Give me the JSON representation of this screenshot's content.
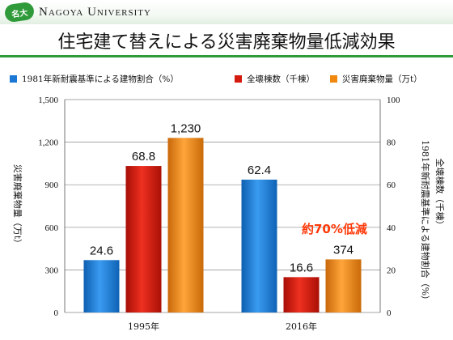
{
  "header": {
    "logo_text": "Nagoya University",
    "badge_text": "名大"
  },
  "slide": {
    "title": "住宅建て替えによる災害廃棄物量低減効果"
  },
  "chart_data": {
    "type": "bar",
    "categories": [
      "1995年",
      "2016年"
    ],
    "series": [
      {
        "name": "1981年新耐震基準による建物割合（%）",
        "axis": "right",
        "values": [
          24.6,
          62.4
        ],
        "labels": [
          "24.6",
          "62.4"
        ],
        "color": "#1a78d4"
      },
      {
        "name": "全壊棟数（千棟）",
        "axis": "right",
        "values": [
          68.8,
          16.6
        ],
        "labels": [
          "68.8",
          "16.6"
        ],
        "color": "#d41a0e"
      },
      {
        "name": "災害廃棄物量（万t）",
        "axis": "left",
        "values": [
          1230,
          374
        ],
        "labels": [
          "1,230",
          "374"
        ],
        "color": "#f08810"
      }
    ],
    "y_left": {
      "label": "災害廃棄物量（万t）",
      "range": [
        0,
        1500
      ],
      "ticks": [
        "0",
        "300",
        "600",
        "900",
        "1,200",
        "1,500"
      ]
    },
    "y_right": {
      "label_line1": "1981年新耐震基準による建物割合（%）",
      "label_line2": "全壊棟数（千棟）",
      "range": [
        0,
        100
      ],
      "ticks": [
        "0",
        "20",
        "40",
        "60",
        "80",
        "100"
      ]
    },
    "annotation": "約70%低減",
    "grid": true,
    "legend_position": "top"
  }
}
